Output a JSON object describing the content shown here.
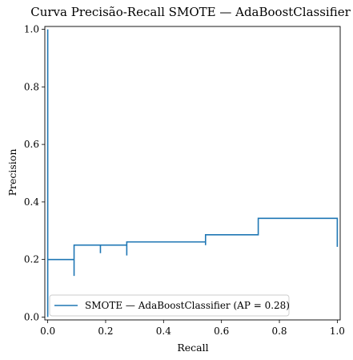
{
  "chart_data": {
    "type": "line",
    "title": "Curva Precisão-Recall SMOTE — AdaBoostClassifier",
    "xlabel": "Recall",
    "ylabel": "Precision",
    "xlim": [
      -0.01,
      1.01
    ],
    "ylim": [
      -0.01,
      1.01
    ],
    "xticks": [
      0.0,
      0.2,
      0.4,
      0.6,
      0.8,
      1.0
    ],
    "yticks": [
      0.0,
      0.2,
      0.4,
      0.6,
      0.8,
      1.0
    ],
    "xtick_labels": [
      "0.0",
      "0.2",
      "0.4",
      "0.6",
      "0.8",
      "1.0"
    ],
    "ytick_labels": [
      "0.0",
      "0.2",
      "0.4",
      "0.6",
      "0.8",
      "1.0"
    ],
    "grid": false,
    "legend_position": "lower-left",
    "series": [
      {
        "name": "SMOTE — AdaBoostClassifier (AP = 0.28)",
        "color": "#1f77b4",
        "drawstyle": "steps-post",
        "recall": [
          1.0,
          1.0,
          0.727,
          0.727,
          0.545,
          0.545,
          0.545,
          0.273,
          0.273,
          0.273,
          0.182,
          0.182,
          0.182,
          0.091,
          0.091,
          0.091,
          0.0,
          0.0,
          0.0
        ],
        "precision": [
          0.244,
          0.343,
          0.343,
          0.286,
          0.286,
          0.25,
          0.261,
          0.261,
          0.214,
          0.25,
          0.25,
          0.222,
          0.25,
          0.25,
          0.143,
          0.2,
          0.2,
          0.0,
          1.0
        ]
      }
    ]
  }
}
